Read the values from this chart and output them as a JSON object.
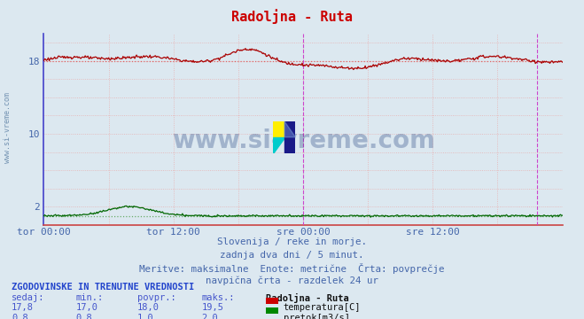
{
  "title": "Radoljna - Ruta",
  "bg_color": "#dce8f0",
  "plot_bg_color": "#dce8f0",
  "title_color": "#cc0000",
  "temp_color": "#aa0000",
  "flow_color": "#006600",
  "avg_temp_color": "#dd6666",
  "avg_flow_color": "#66aa66",
  "vline_color": "#cc44cc",
  "grid_color": "#c8c8d8",
  "spine_color_lr": "#cc4444",
  "spine_color_tb": "#4444cc",
  "tick_label_color": "#4466aa",
  "xlabel_color": "#4466aa",
  "xlim": [
    0,
    576
  ],
  "ylim": [
    0,
    21
  ],
  "ytick_vals": [
    2,
    10,
    18
  ],
  "ytick_labels": [
    "2",
    "10",
    "18"
  ],
  "xtick_positions": [
    0,
    144,
    288,
    432
  ],
  "xtick_labels": [
    "tor 00:00",
    "tor 12:00",
    "sre 00:00",
    "sre 12:00"
  ],
  "vline_positions": [
    288,
    548
  ],
  "temp_avg": 18.0,
  "flow_avg": 1.0,
  "text_lines": [
    "Slovenija / reke in morje.",
    "zadnja dva dni / 5 minut.",
    "Meritve: maksimalne  Enote: metrične  Črta: povprečje",
    "navpična črta - razdelek 24 ur"
  ],
  "table_header": "ZGODOVINSKE IN TRENUTNE VREDNOSTI",
  "col_headers": [
    "sedaj:",
    "min.:",
    "povpr.:",
    "maks.:",
    "Radoljna - Ruta"
  ],
  "row1": [
    "17,8",
    "17,0",
    "18,0",
    "19,5"
  ],
  "row1_label": "temperatura[C]",
  "row1_color": "#cc0000",
  "row2": [
    "0,8",
    "0,8",
    "1,0",
    "2,0"
  ],
  "row2_label": "pretok[m3/s]",
  "row2_color": "#008800",
  "watermark_text": "www.si-vreme.com",
  "watermark_color": "#1a3a7a",
  "side_text": "www.si-vreme.com",
  "side_text_color": "#6688aa"
}
